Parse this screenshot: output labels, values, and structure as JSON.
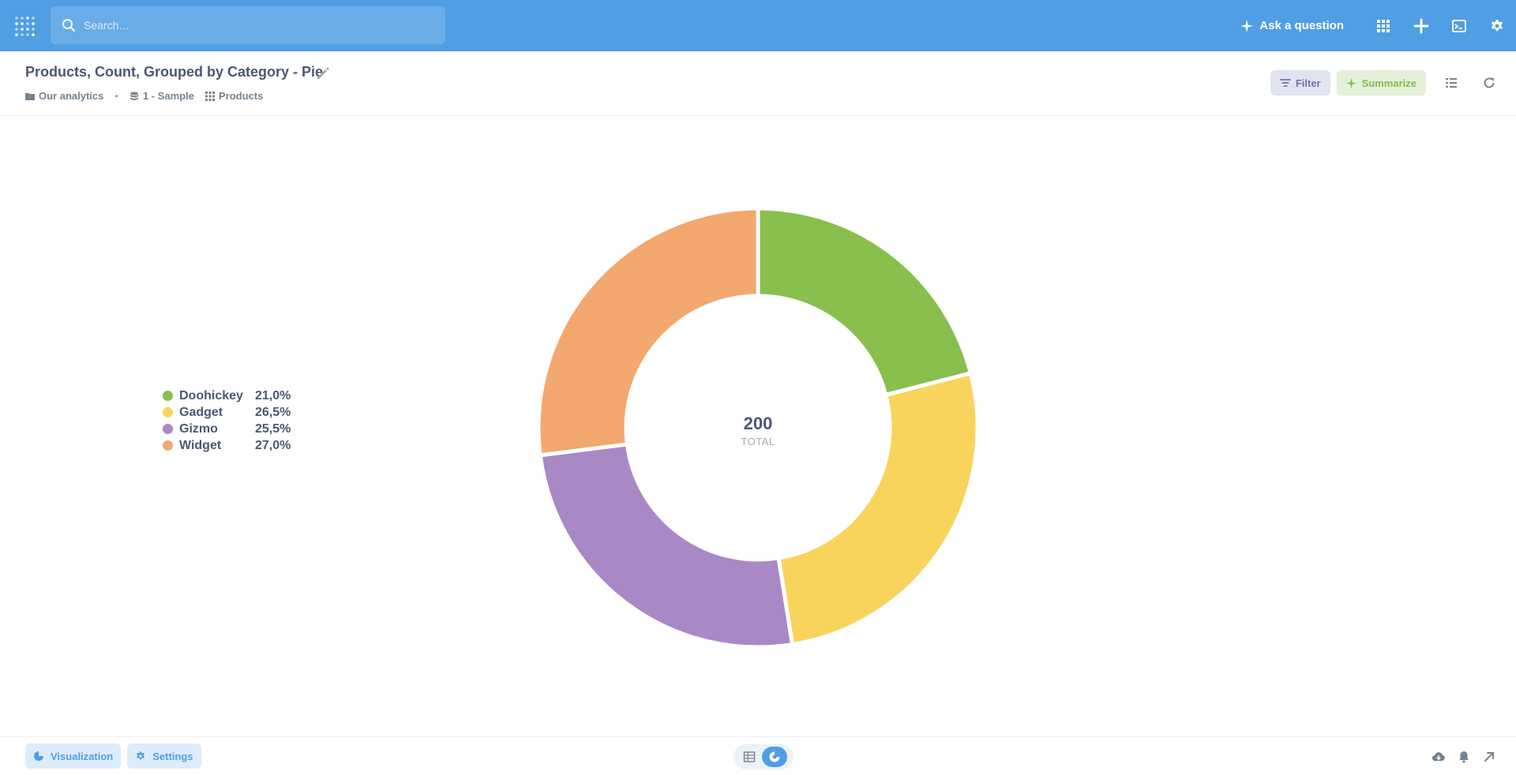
{
  "nav": {
    "search_placeholder": "Search…",
    "ask_label": "Ask a question",
    "brand_color": "#509ee3"
  },
  "header": {
    "title": "Products, Count, Grouped by Category - Pie",
    "breadcrumbs": [
      "Our analytics",
      "1 - Sample",
      "Products"
    ],
    "filter_label": "Filter",
    "summarize_label": "Summarize"
  },
  "chart_data": {
    "type": "pie",
    "style": "donut",
    "categories": [
      "Doohickey",
      "Gadget",
      "Gizmo",
      "Widget"
    ],
    "percent_labels": [
      "21,0%",
      "26,5%",
      "25,5%",
      "27,0%"
    ],
    "values": [
      42,
      53,
      51,
      54
    ],
    "colors": [
      "#88bf4d",
      "#f9d45c",
      "#a989c5",
      "#f2a86f"
    ],
    "total": "200",
    "total_label": "TOTAL",
    "legend_position": "left"
  },
  "footer": {
    "visualization_label": "Visualization",
    "settings_label": "Settings"
  },
  "icons": {
    "logo": "metabase-logo",
    "search": "search-icon",
    "ask": "sparkle-icon",
    "apps": "grid-icon",
    "new": "plus-icon",
    "sql": "terminal-icon",
    "settings": "gear-icon"
  }
}
